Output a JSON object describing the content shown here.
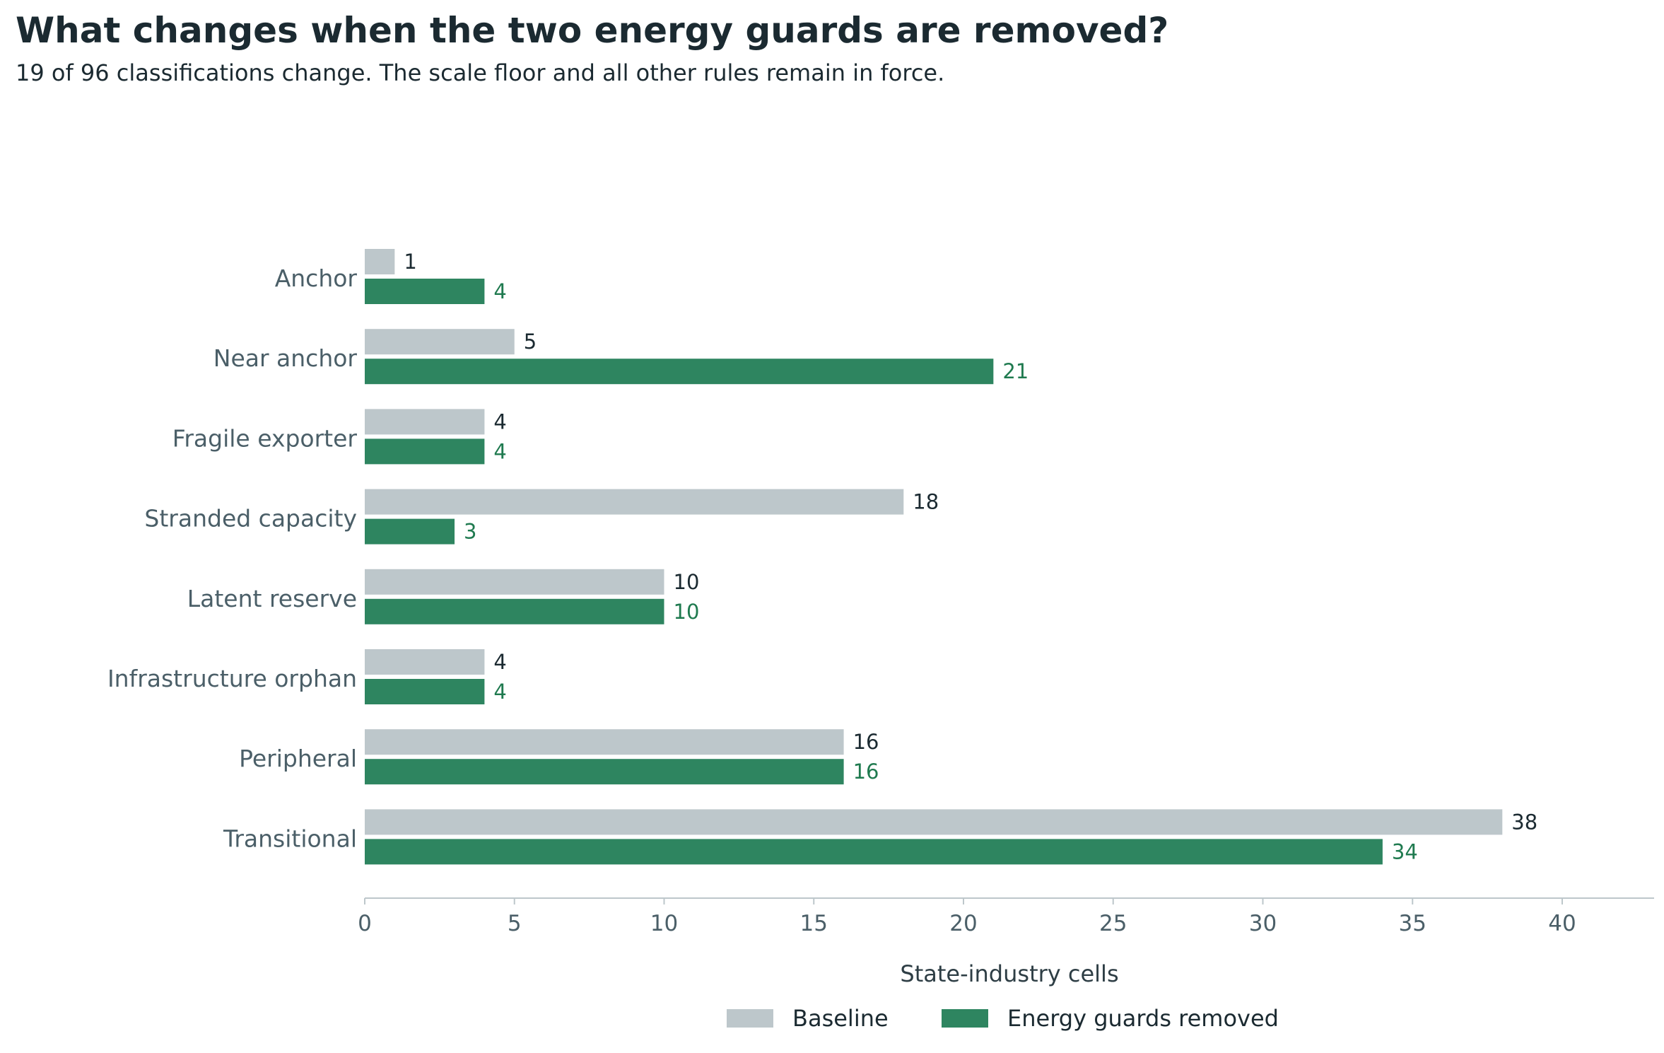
{
  "title": "What changes when the two energy guards are removed?",
  "subtitle": "19 of 96 classifications change. The scale floor and all other rules remain in force.",
  "colors": {
    "baseline": "#bdc7cb",
    "energy_guards_removed": "#2e8560",
    "energy_value_label": "#1f7a4f",
    "axis": "#bdc7cb"
  },
  "chart_data": {
    "type": "bar",
    "orientation": "horizontal",
    "categories": [
      "Anchor",
      "Near anchor",
      "Fragile exporter",
      "Stranded capacity",
      "Latent reserve",
      "Infrastructure orphan",
      "Peripheral",
      "Transitional"
    ],
    "series": [
      {
        "name": "Baseline",
        "values": [
          1,
          5,
          4,
          18,
          10,
          4,
          16,
          38
        ]
      },
      {
        "name": "Energy guards removed",
        "values": [
          4,
          21,
          4,
          3,
          10,
          4,
          16,
          34
        ]
      }
    ],
    "xlabel": "State-industry cells",
    "ylabel": "",
    "xlim": [
      0,
      43
    ],
    "xticks": [
      0,
      5,
      10,
      15,
      20,
      25,
      30,
      35,
      40
    ],
    "grid": false,
    "legend_position": "bottom-center"
  }
}
